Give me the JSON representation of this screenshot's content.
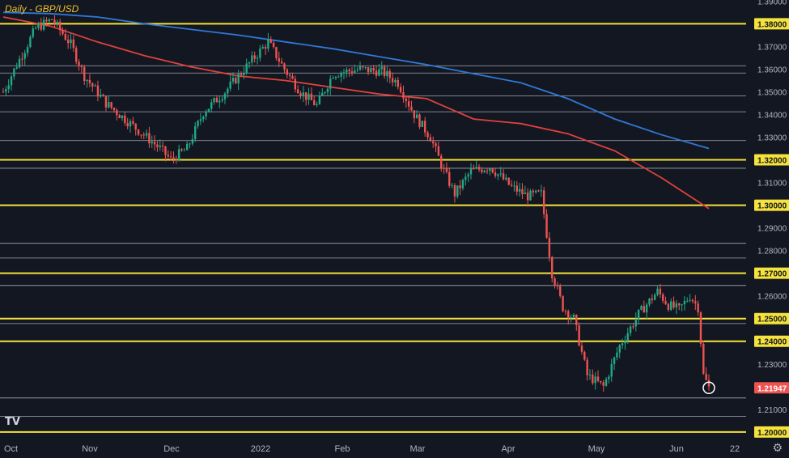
{
  "chart_data": {
    "type": "candlestick",
    "title": "Daily - GBP/USD",
    "ylim": [
      1.1978,
      1.3905
    ],
    "x_ticks": [
      "Oct",
      "Nov",
      "Dec",
      "2022",
      "Feb",
      "Mar",
      "Apr",
      "May",
      "Jun",
      "22"
    ],
    "y_ticks": [
      "1.39000",
      "1.37000",
      "1.36000",
      "1.35000",
      "1.34000",
      "1.33000",
      "1.31000",
      "1.29000",
      "1.28000",
      "1.26000",
      "1.23000",
      "1.21000"
    ],
    "horizontal_levels_highlighted": [
      "1.38000",
      "1.32000",
      "1.30000",
      "1.27000",
      "1.25000",
      "1.24000",
      "1.20000"
    ],
    "horizontal_levels_minor": [
      1.3615,
      1.3583,
      1.3482,
      1.3412,
      1.3285,
      1.3163,
      1.2832,
      1.2767,
      1.2646,
      1.2478,
      1.215,
      1.2069
    ],
    "last_price": "1.21947",
    "moving_averages": [
      {
        "period": "200",
        "color": "#2f78d6",
        "values": [
          1.385,
          1.3845,
          1.383,
          1.38,
          1.3775,
          1.375,
          1.372,
          1.369,
          1.3655,
          1.362,
          1.358,
          1.354,
          1.347,
          1.338,
          1.331,
          1.325
        ]
      },
      {
        "period": "100",
        "color": "#e0413c",
        "values": [
          1.383,
          1.379,
          1.372,
          1.366,
          1.361,
          1.357,
          1.355,
          1.352,
          1.349,
          1.347,
          1.338,
          1.336,
          1.3315,
          1.324,
          1.312,
          1.2985
        ]
      }
    ],
    "path_points": [
      [
        0,
        1.35
      ],
      [
        5,
        1.362
      ],
      [
        12,
        1.378
      ],
      [
        18,
        1.382
      ],
      [
        25,
        1.371
      ],
      [
        30,
        1.357
      ],
      [
        38,
        1.345
      ],
      [
        48,
        1.335
      ],
      [
        58,
        1.325
      ],
      [
        62,
        1.32
      ],
      [
        68,
        1.325
      ],
      [
        74,
        1.341
      ],
      [
        82,
        1.35
      ],
      [
        92,
        1.364
      ],
      [
        98,
        1.372
      ],
      [
        104,
        1.36
      ],
      [
        110,
        1.35
      ],
      [
        116,
        1.344
      ],
      [
        122,
        1.358
      ],
      [
        132,
        1.36
      ],
      [
        140,
        1.359
      ],
      [
        146,
        1.354
      ],
      [
        152,
        1.34
      ],
      [
        158,
        1.33
      ],
      [
        163,
        1.315
      ],
      [
        167,
        1.305
      ],
      [
        173,
        1.315
      ],
      [
        180,
        1.317
      ],
      [
        188,
        1.308
      ],
      [
        194,
        1.304
      ],
      [
        199,
        1.305
      ],
      [
        203,
        1.27
      ],
      [
        207,
        1.255
      ],
      [
        211,
        1.25
      ],
      [
        216,
        1.225
      ],
      [
        222,
        1.22
      ],
      [
        228,
        1.238
      ],
      [
        235,
        1.252
      ],
      [
        242,
        1.262
      ],
      [
        246,
        1.256
      ],
      [
        250,
        1.254
      ],
      [
        254,
        1.26
      ],
      [
        257,
        1.255
      ],
      [
        259,
        1.225
      ],
      [
        261,
        1.2195
      ]
    ]
  }
}
